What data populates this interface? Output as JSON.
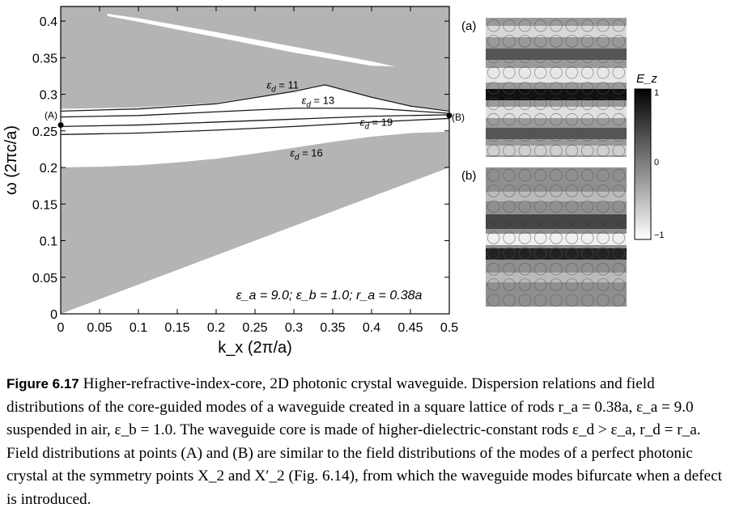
{
  "figure": {
    "chart_data": {
      "type": "line",
      "title": "",
      "xlabel": "k_x (2π/a)",
      "ylabel": "ω (2πc/a)",
      "xlim": [
        0,
        0.5
      ],
      "ylim": [
        0,
        0.42
      ],
      "xticks": [
        "0",
        "0.05",
        "0.1",
        "0.15",
        "0.2",
        "0.25",
        "0.3",
        "0.35",
        "0.4",
        "0.45",
        "0.5"
      ],
      "yticks": [
        "0",
        "0.05",
        "0.1",
        "0.15",
        "0.2",
        "0.25",
        "0.3",
        "0.35",
        "0.4"
      ],
      "grid": false,
      "shaded_bands": [
        {
          "lower": {
            "x": [
              0,
              0.05,
              0.1,
              0.15,
              0.2,
              0.25,
              0.3,
              0.35,
              0.4,
              0.45,
              0.5
            ],
            "y": [
              0,
              0.02,
              0.04,
              0.06,
              0.08,
              0.1,
              0.12,
              0.14,
              0.16,
              0.18,
              0.2
            ]
          },
          "upper": {
            "x": [
              0,
              0.05,
              0.1,
              0.15,
              0.2,
              0.25,
              0.3,
              0.35,
              0.4,
              0.45,
              0.5
            ],
            "y": [
              0.2,
              0.201,
              0.203,
              0.207,
              0.212,
              0.219,
              0.227,
              0.235,
              0.242,
              0.247,
              0.249
            ]
          }
        },
        {
          "lower": {
            "x": [
              0,
              0.1,
              0.2,
              0.3,
              0.34,
              0.4,
              0.45,
              0.5
            ],
            "y": [
              0.28,
              0.282,
              0.288,
              0.305,
              0.314,
              0.297,
              0.285,
              0.278
            ]
          },
          "upper": {
            "x": [
              0,
              0.5
            ],
            "y": [
              0.42,
              0.42
            ]
          }
        }
      ],
      "gaps": [
        {
          "x": [
            0.06,
            0.1,
            0.2,
            0.3,
            0.4,
            0.43
          ],
          "upper": [
            0.41,
            0.404,
            0.385,
            0.365,
            0.345,
            0.338
          ],
          "lower": [
            0.407,
            0.399,
            0.378,
            0.357,
            0.339,
            0.338
          ]
        }
      ],
      "series": [
        {
          "name": "ε_d = 11",
          "x": [
            0,
            0.1,
            0.2,
            0.3,
            0.34,
            0.4,
            0.45,
            0.5
          ],
          "y": [
            0.277,
            0.28,
            0.287,
            0.304,
            0.313,
            0.296,
            0.284,
            0.277
          ]
        },
        {
          "name": "ε_d = 13",
          "x": [
            0,
            0.1,
            0.2,
            0.3,
            0.4,
            0.5
          ],
          "y": [
            0.269,
            0.271,
            0.276,
            0.281,
            0.281,
            0.274
          ]
        },
        {
          "name": "ε_d = 19",
          "x": [
            0,
            0.1,
            0.2,
            0.3,
            0.4,
            0.5
          ],
          "y": [
            0.256,
            0.258,
            0.262,
            0.266,
            0.27,
            0.272
          ]
        },
        {
          "name": "ε_d = 16",
          "x": [
            0,
            0.1,
            0.2,
            0.3,
            0.4,
            0.5
          ],
          "y": [
            0.245,
            0.247,
            0.251,
            0.256,
            0.262,
            0.267
          ]
        }
      ],
      "labels": [
        {
          "text": "ε_d = 11",
          "x": 0.265,
          "y": 0.308
        },
        {
          "text": "ε_d = 13",
          "x": 0.31,
          "y": 0.287
        },
        {
          "text": "ε_d = 19",
          "x": 0.385,
          "y": 0.257
        },
        {
          "text": "ε_d = 16",
          "x": 0.295,
          "y": 0.215
        }
      ],
      "points": [
        {
          "label": "(A)",
          "x": 0,
          "y": 0.258
        },
        {
          "label": "(B)",
          "x": 0.5,
          "y": 0.271
        }
      ],
      "annotation": "ε_a = 9.0; ε_b = 1.0; r_a = 0.38a"
    },
    "panels": [
      {
        "label": "(a)"
      },
      {
        "label": "(b)"
      }
    ],
    "colorbar": {
      "label": "E_z",
      "ticks": [
        "1",
        "0",
        "−1"
      ]
    }
  },
  "caption": {
    "figure_number": "Figure 6.17",
    "text": " Higher-refractive-index-core, 2D photonic crystal waveguide. Dispersion relations and field distributions of the core-guided modes of a waveguide created in a square lattice of rods r_a = 0.38a, ε_a = 9.0 suspended in air, ε_b = 1.0. The waveguide core is made of higher-dielectric-constant rods ε_d > ε_a, r_d = r_a. Field distributions at points (A) and (B) are similar to the field distributions of the modes of a perfect photonic crystal at the symmetry points X_2 and X′_2 (Fig. 6.14), from which the waveguide modes bifurcate when a defect is introduced."
  }
}
